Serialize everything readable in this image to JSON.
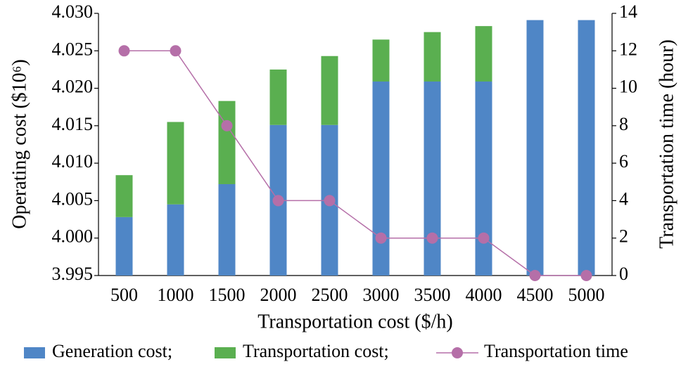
{
  "chart_data": {
    "type": "bar",
    "xlabel": "Transportation cost ($/h)",
    "ylabel": "Operating cost ($10⁶)",
    "y2label": "Transportation time (hour)",
    "categories": [
      "500",
      "1000",
      "1500",
      "2000",
      "2500",
      "3000",
      "3500",
      "4000",
      "4500",
      "5000"
    ],
    "stacked": true,
    "series": [
      {
        "name": "Generation cost;",
        "color": "#4f86c6",
        "values": [
          4.0028,
          4.0045,
          4.0072,
          4.0151,
          4.0151,
          4.0209,
          4.0209,
          4.0209,
          4.0291,
          4.0291
        ]
      },
      {
        "name": "Transportation cost;",
        "color": "#5aaf50",
        "values": [
          0.0056,
          0.011,
          0.0111,
          0.0074,
          0.0092,
          0.0056,
          0.0066,
          0.0074,
          0,
          0
        ]
      },
      {
        "name": "Transportation time",
        "color": "#b56fa8",
        "type": "line",
        "axis": "y2",
        "values": [
          12,
          12,
          8,
          4,
          4,
          2,
          2,
          2,
          0,
          0
        ]
      }
    ],
    "ylim": [
      3.995,
      4.03
    ],
    "yticks": [
      3.995,
      {
        "value": 4.0,
        "label": "4.000"
      },
      4.005,
      {
        "value": 4.01,
        "label": "4.010"
      },
      4.015,
      {
        "value": 4.02,
        "label": "4.020"
      },
      4.025,
      {
        "value": 4.03,
        "label": "4.030"
      }
    ],
    "y2lim": [
      0,
      14
    ],
    "y2ticks": [
      0,
      2,
      4,
      6,
      8,
      10,
      12,
      14
    ],
    "grid": false,
    "legend": "bottom"
  }
}
